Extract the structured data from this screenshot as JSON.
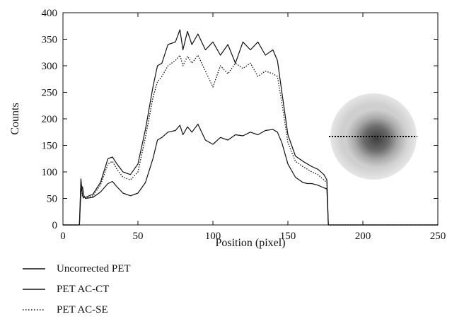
{
  "chart_data": {
    "type": "line",
    "xlabel": "Position (pixel)",
    "ylabel": "Counts",
    "xlim": [
      0,
      250
    ],
    "ylim": [
      0,
      400
    ],
    "xticks": [
      0,
      50,
      100,
      150,
      200,
      250
    ],
    "yticks": [
      0,
      50,
      100,
      150,
      200,
      250,
      300,
      350,
      400
    ],
    "grid": false,
    "legend_position": "bottom-left",
    "inset": "phantom slice image with dotted horizontal profile line",
    "series": [
      {
        "name": "Uncorrected PET",
        "style": "solid",
        "color": "#111111",
        "x": [
          0,
          11,
          12,
          13,
          14,
          15,
          20,
          25,
          30,
          33,
          36,
          40,
          45,
          50,
          55,
          60,
          63,
          66,
          70,
          75,
          78,
          80,
          83,
          86,
          90,
          95,
          100,
          105,
          110,
          115,
          120,
          125,
          130,
          135,
          140,
          143,
          146,
          150,
          155,
          160,
          163,
          166,
          170,
          174,
          176,
          177,
          178,
          179,
          180,
          250
        ],
        "y": [
          0,
          0,
          65,
          72,
          55,
          50,
          52,
          62,
          78,
          82,
          72,
          60,
          55,
          60,
          80,
          125,
          160,
          165,
          175,
          178,
          188,
          170,
          185,
          175,
          190,
          160,
          152,
          165,
          160,
          170,
          168,
          175,
          170,
          178,
          180,
          175,
          155,
          115,
          90,
          80,
          78,
          78,
          75,
          70,
          68,
          0,
          0,
          0,
          0,
          0
        ]
      },
      {
        "name": "PET AC-CT",
        "style": "solid",
        "color": "#111111",
        "x": [
          0,
          11,
          12,
          13,
          14,
          15,
          20,
          25,
          30,
          33,
          36,
          40,
          45,
          50,
          55,
          60,
          63,
          66,
          70,
          75,
          78,
          80,
          83,
          86,
          90,
          95,
          100,
          105,
          110,
          115,
          120,
          125,
          130,
          135,
          140,
          143,
          146,
          150,
          155,
          160,
          163,
          166,
          170,
          174,
          176,
          177,
          178,
          179,
          180,
          250
        ],
        "y": [
          0,
          0,
          87,
          55,
          52,
          52,
          58,
          80,
          125,
          128,
          115,
          100,
          95,
          115,
          180,
          260,
          300,
          305,
          340,
          345,
          368,
          330,
          365,
          340,
          360,
          330,
          345,
          320,
          340,
          305,
          345,
          330,
          345,
          320,
          330,
          310,
          250,
          170,
          130,
          120,
          115,
          110,
          105,
          95,
          85,
          0,
          0,
          0,
          0,
          0
        ]
      },
      {
        "name": "PET AC-SE",
        "style": "dotted",
        "color": "#111111",
        "x": [
          0,
          11,
          12,
          13,
          14,
          15,
          20,
          25,
          30,
          33,
          36,
          40,
          45,
          50,
          55,
          60,
          63,
          66,
          70,
          75,
          78,
          80,
          83,
          86,
          90,
          95,
          100,
          105,
          110,
          115,
          120,
          125,
          130,
          135,
          140,
          143,
          146,
          150,
          155,
          160,
          163,
          166,
          170,
          174,
          176,
          177,
          178,
          179,
          180,
          250
        ],
        "y": [
          0,
          0,
          80,
          52,
          50,
          50,
          55,
          75,
          115,
          120,
          105,
          90,
          85,
          100,
          165,
          240,
          270,
          280,
          300,
          310,
          320,
          300,
          318,
          305,
          320,
          290,
          260,
          300,
          285,
          305,
          295,
          305,
          280,
          290,
          285,
          280,
          230,
          155,
          120,
          110,
          105,
          100,
          95,
          85,
          80,
          0,
          0,
          0,
          0,
          0
        ]
      }
    ]
  }
}
